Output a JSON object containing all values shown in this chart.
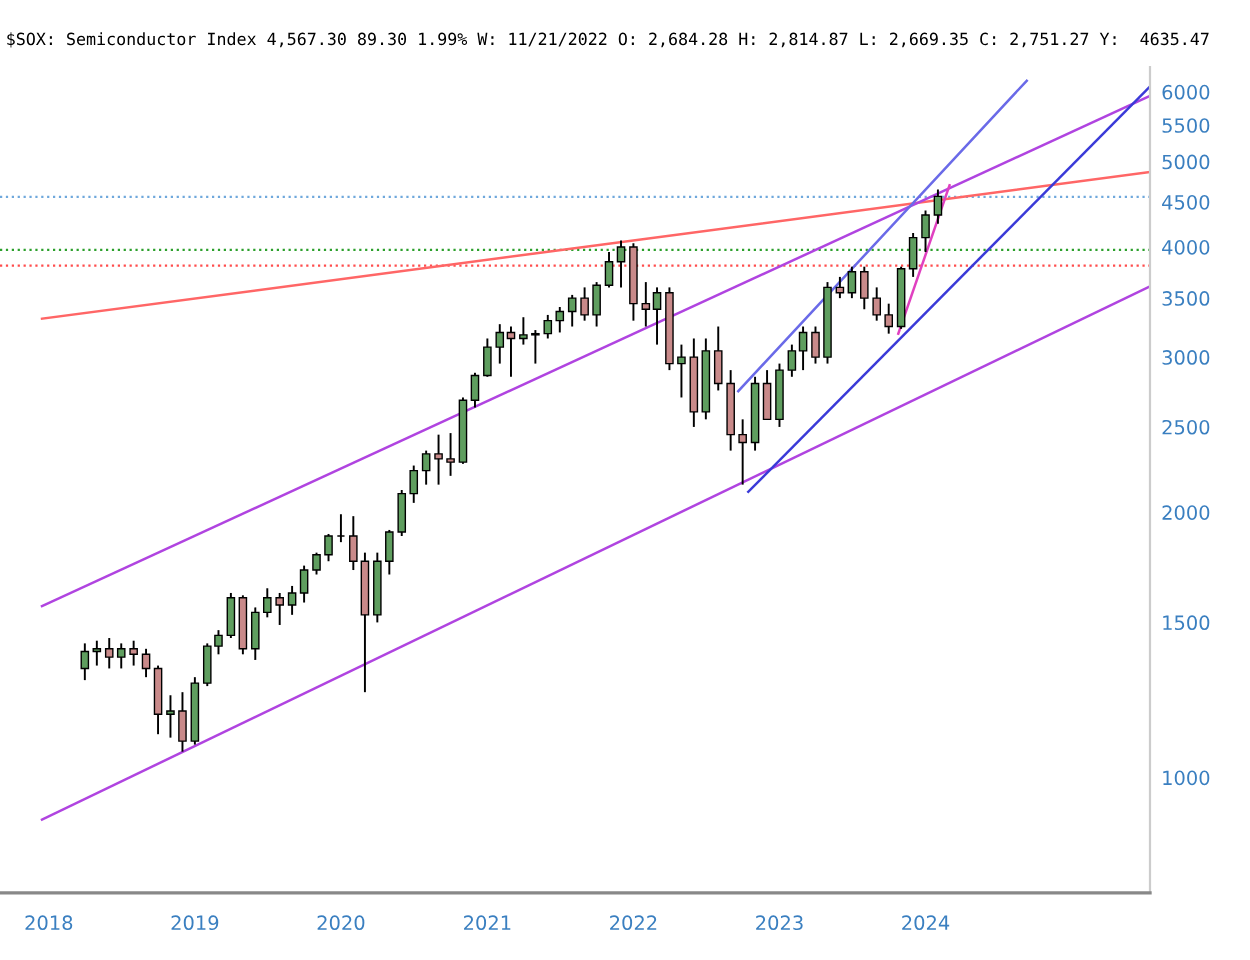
{
  "chart_data": {
    "type": "candlestick",
    "title": "$SOX: Semiconductor Index 4,567.30 89.30 1.99% W: 11/21/2022 O: 2,684.28 H: 2,814.87 L: 2,669.35 C: 2,751.27 Y:  4635.47",
    "x": [
      "2018-04",
      "2018-05",
      "2018-06",
      "2018-07",
      "2018-08",
      "2018-09",
      "2018-10",
      "2018-11",
      "2018-12",
      "2019-01",
      "2019-02",
      "2019-03",
      "2019-04",
      "2019-05",
      "2019-06",
      "2019-07",
      "2019-08",
      "2019-09",
      "2019-10",
      "2019-11",
      "2019-12",
      "2020-01",
      "2020-02",
      "2020-03",
      "2020-04",
      "2020-05",
      "2020-06",
      "2020-07",
      "2020-08",
      "2020-09",
      "2020-10",
      "2020-11",
      "2020-12",
      "2021-01",
      "2021-02",
      "2021-03",
      "2021-04",
      "2021-05",
      "2021-06",
      "2021-07",
      "2021-08",
      "2021-09",
      "2021-10",
      "2021-11",
      "2021-12",
      "2022-01",
      "2022-02",
      "2022-03",
      "2022-04",
      "2022-05",
      "2022-06",
      "2022-07",
      "2022-08",
      "2022-09",
      "2022-10",
      "2022-11",
      "2022-12",
      "2023-01",
      "2023-02",
      "2023-03",
      "2023-04",
      "2023-05",
      "2023-06",
      "2023-07",
      "2023-08",
      "2023-09",
      "2023-10",
      "2023-11",
      "2023-12",
      "2024-01",
      "2024-02"
    ],
    "ohlc": [
      [
        1330,
        1420,
        1290,
        1390
      ],
      [
        1390,
        1430,
        1340,
        1400
      ],
      [
        1400,
        1440,
        1330,
        1370
      ],
      [
        1370,
        1420,
        1330,
        1400
      ],
      [
        1400,
        1430,
        1340,
        1380
      ],
      [
        1380,
        1400,
        1300,
        1330
      ],
      [
        1330,
        1340,
        1120,
        1180
      ],
      [
        1180,
        1240,
        1110,
        1190
      ],
      [
        1190,
        1250,
        1070,
        1100
      ],
      [
        1100,
        1300,
        1090,
        1280
      ],
      [
        1280,
        1420,
        1270,
        1410
      ],
      [
        1410,
        1470,
        1380,
        1450
      ],
      [
        1450,
        1620,
        1440,
        1600
      ],
      [
        1600,
        1610,
        1380,
        1400
      ],
      [
        1400,
        1560,
        1360,
        1540
      ],
      [
        1540,
        1640,
        1520,
        1600
      ],
      [
        1600,
        1620,
        1490,
        1570
      ],
      [
        1570,
        1650,
        1530,
        1620
      ],
      [
        1620,
        1740,
        1580,
        1720
      ],
      [
        1720,
        1800,
        1700,
        1790
      ],
      [
        1790,
        1890,
        1760,
        1880
      ],
      [
        1880,
        1990,
        1850,
        1880
      ],
      [
        1880,
        1980,
        1720,
        1760
      ],
      [
        1760,
        1800,
        1250,
        1530
      ],
      [
        1530,
        1800,
        1500,
        1760
      ],
      [
        1760,
        1910,
        1700,
        1900
      ],
      [
        1900,
        2120,
        1880,
        2100
      ],
      [
        2100,
        2260,
        2050,
        2230
      ],
      [
        2230,
        2350,
        2150,
        2330
      ],
      [
        2330,
        2450,
        2150,
        2300
      ],
      [
        2300,
        2460,
        2200,
        2280
      ],
      [
        2280,
        2700,
        2270,
        2680
      ],
      [
        2680,
        2880,
        2630,
        2860
      ],
      [
        2860,
        3150,
        2850,
        3080
      ],
      [
        3080,
        3270,
        2950,
        3200
      ],
      [
        3200,
        3250,
        2850,
        3150
      ],
      [
        3150,
        3330,
        3100,
        3180
      ],
      [
        3180,
        3220,
        2950,
        3190
      ],
      [
        3190,
        3350,
        3150,
        3300
      ],
      [
        3300,
        3420,
        3200,
        3380
      ],
      [
        3380,
        3530,
        3250,
        3500
      ],
      [
        3500,
        3600,
        3300,
        3350
      ],
      [
        3350,
        3650,
        3250,
        3620
      ],
      [
        3620,
        3950,
        3600,
        3850
      ],
      [
        3850,
        4070,
        3600,
        4000
      ],
      [
        4000,
        4040,
        3300,
        3450
      ],
      [
        3450,
        3650,
        3250,
        3400
      ],
      [
        3400,
        3600,
        3100,
        3550
      ],
      [
        3550,
        3600,
        2900,
        2950
      ],
      [
        2950,
        3100,
        2700,
        3000
      ],
      [
        3000,
        3150,
        2500,
        2600
      ],
      [
        2600,
        3150,
        2550,
        3050
      ],
      [
        3050,
        3250,
        2750,
        2800
      ],
      [
        2800,
        2900,
        2350,
        2450
      ],
      [
        2450,
        2550,
        2150,
        2400
      ],
      [
        2400,
        2850,
        2350,
        2800
      ],
      [
        2800,
        2900,
        2550,
        2550
      ],
      [
        2550,
        2950,
        2500,
        2900
      ],
      [
        2900,
        3100,
        2850,
        3050
      ],
      [
        3050,
        3250,
        2900,
        3200
      ],
      [
        3200,
        3250,
        2950,
        3000
      ],
      [
        3000,
        3650,
        2950,
        3600
      ],
      [
        3600,
        3700,
        3500,
        3550
      ],
      [
        3550,
        3800,
        3500,
        3750
      ],
      [
        3750,
        3800,
        3400,
        3500
      ],
      [
        3500,
        3600,
        3300,
        3350
      ],
      [
        3350,
        3450,
        3190,
        3250
      ],
      [
        3250,
        3800,
        3230,
        3780
      ],
      [
        3780,
        4150,
        3700,
        4100
      ],
      [
        4100,
        4400,
        3950,
        4350
      ],
      [
        4350,
        4650,
        4250,
        4567
      ]
    ],
    "series": [
      {
        "type": "line",
        "color": "#ff6666",
        "x": [
          "2017-12-15",
          "2025-07-15"
        ],
        "values": [
          3317,
          4866
        ]
      },
      {
        "type": "line",
        "color": "#b044e0",
        "x": [
          "2017-12-15",
          "2025-07-15"
        ],
        "values": [
          1565,
          5937
        ]
      },
      {
        "type": "line",
        "color": "#b044e0",
        "x": [
          "2017-12-15",
          "2025-07-15"
        ],
        "values": [
          896,
          3610
        ]
      },
      {
        "type": "line",
        "color": "#3a3ad8",
        "x": [
          "2022-10-15",
          "2025-07-15"
        ],
        "values": [
          2110,
          6085
        ]
      },
      {
        "type": "line",
        "color": "#6a6ae8",
        "x": [
          "2022-09-20",
          "2024-09-10"
        ],
        "values": [
          2745,
          6178
        ]
      },
      {
        "type": "line",
        "color": "#e040c0",
        "x": [
          "2023-10-25",
          "2024-03-01"
        ],
        "values": [
          3190,
          4700
        ]
      }
    ],
    "ref_lines": [
      {
        "axis": "y",
        "value": 4560,
        "color": "#6fa8dc",
        "line_style": "dotted"
      },
      {
        "axis": "y",
        "value": 3970,
        "color": "#2ca02c",
        "line_style": "dotted"
      },
      {
        "axis": "y",
        "value": 3810,
        "color": "#ff4d4d",
        "line_style": "dotted"
      }
    ],
    "log": true,
    "grid": false,
    "xlim": [
      "2017-09-01",
      "2025-07-15"
    ],
    "xticks": [
      {
        "value": "2018-01-01",
        "label": "2018"
      },
      {
        "value": "2019-01-01",
        "label": "2019"
      },
      {
        "value": "2020-01-01",
        "label": "2020"
      },
      {
        "value": "2021-01-01",
        "label": "2021"
      },
      {
        "value": "2022-01-01",
        "label": "2022"
      },
      {
        "value": "2023-01-01",
        "label": "2023"
      },
      {
        "value": "2024-01-01",
        "label": "2024"
      }
    ],
    "ylim": [
      740,
      6400
    ],
    "yticks": [
      1000,
      1500,
      2000,
      2500,
      3000,
      3500,
      4000,
      4500,
      5000,
      5500,
      6000
    ]
  }
}
